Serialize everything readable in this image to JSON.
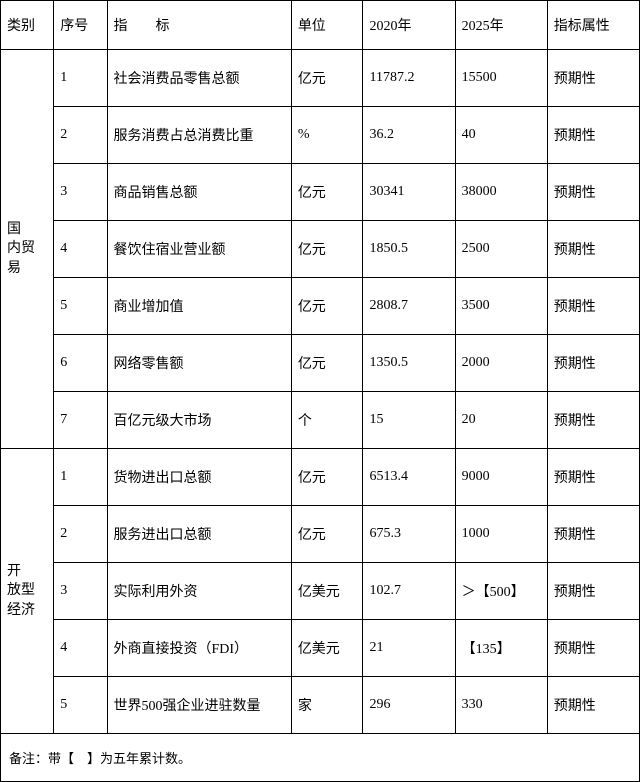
{
  "table": {
    "columns": [
      {
        "key": "category",
        "label": "类别"
      },
      {
        "key": "seq",
        "label": "序号"
      },
      {
        "key": "indicator",
        "label": "指　　标"
      },
      {
        "key": "unit",
        "label": "单位"
      },
      {
        "key": "y2020",
        "label": "2020年"
      },
      {
        "key": "y2025",
        "label": "2025年"
      },
      {
        "key": "attr",
        "label": "指标属性"
      }
    ],
    "groups": [
      {
        "category": "国　内贸易",
        "rows": [
          {
            "seq": "1",
            "indicator": "社会消费品零售总额",
            "unit": "亿元",
            "y2020": "11787.2",
            "y2025": "15500",
            "attr": "预期性"
          },
          {
            "seq": "2",
            "indicator": "服务消费占总消费比重",
            "unit": "%",
            "y2020": "36.2",
            "y2025": "40",
            "attr": "预期性"
          },
          {
            "seq": "3",
            "indicator": "商品销售总额",
            "unit": "亿元",
            "y2020": "30341",
            "y2025": "38000",
            "attr": "预期性"
          },
          {
            "seq": "4",
            "indicator": "餐饮住宿业营业额",
            "unit": "亿元",
            "y2020": "1850.5",
            "y2025": "2500",
            "attr": "预期性"
          },
          {
            "seq": "5",
            "indicator": "商业增加值",
            "unit": "亿元",
            "y2020": "2808.7",
            "y2025": "3500",
            "attr": "预期性"
          },
          {
            "seq": "6",
            "indicator": "网络零售额",
            "unit": "亿元",
            "y2020": "1350.5",
            "y2025": "2000",
            "attr": "预期性"
          },
          {
            "seq": "7",
            "indicator": "百亿元级大市场",
            "unit": "个",
            "y2020": "15",
            "y2025": "20",
            "attr": "预期性"
          }
        ]
      },
      {
        "category": "开　放型　经济",
        "rows": [
          {
            "seq": "1",
            "indicator": "货物进出口总额",
            "unit": "亿元",
            "y2020": "6513.4",
            "y2025": "9000",
            "attr": "预期性"
          },
          {
            "seq": "2",
            "indicator": "服务进出口总额",
            "unit": "亿元",
            "y2020": "675.3",
            "y2025": "1000",
            "attr": "预期性"
          },
          {
            "seq": "3",
            "indicator": "实际利用外资",
            "unit": "亿美元",
            "y2020": "102.7",
            "y2025": "＞【500】",
            "attr": "预期性"
          },
          {
            "seq": "4",
            "indicator": "外商直接投资（FDI）",
            "unit": "亿美元",
            "y2020": "21",
            "y2025": "【135】",
            "attr": "预期性"
          },
          {
            "seq": "5",
            "indicator": "世界500强企业进驻数量",
            "unit": "家",
            "y2020": "296",
            "y2025": "330",
            "attr": "预期性"
          }
        ]
      }
    ],
    "footnote": "备注：带【　】为五年累计数。"
  },
  "style": {
    "border_color": "#000000",
    "background_color": "#ffffff",
    "text_color": "#000000",
    "font_family": "SimSun",
    "cell_fontsize": 14,
    "footnote_fontsize": 13
  }
}
